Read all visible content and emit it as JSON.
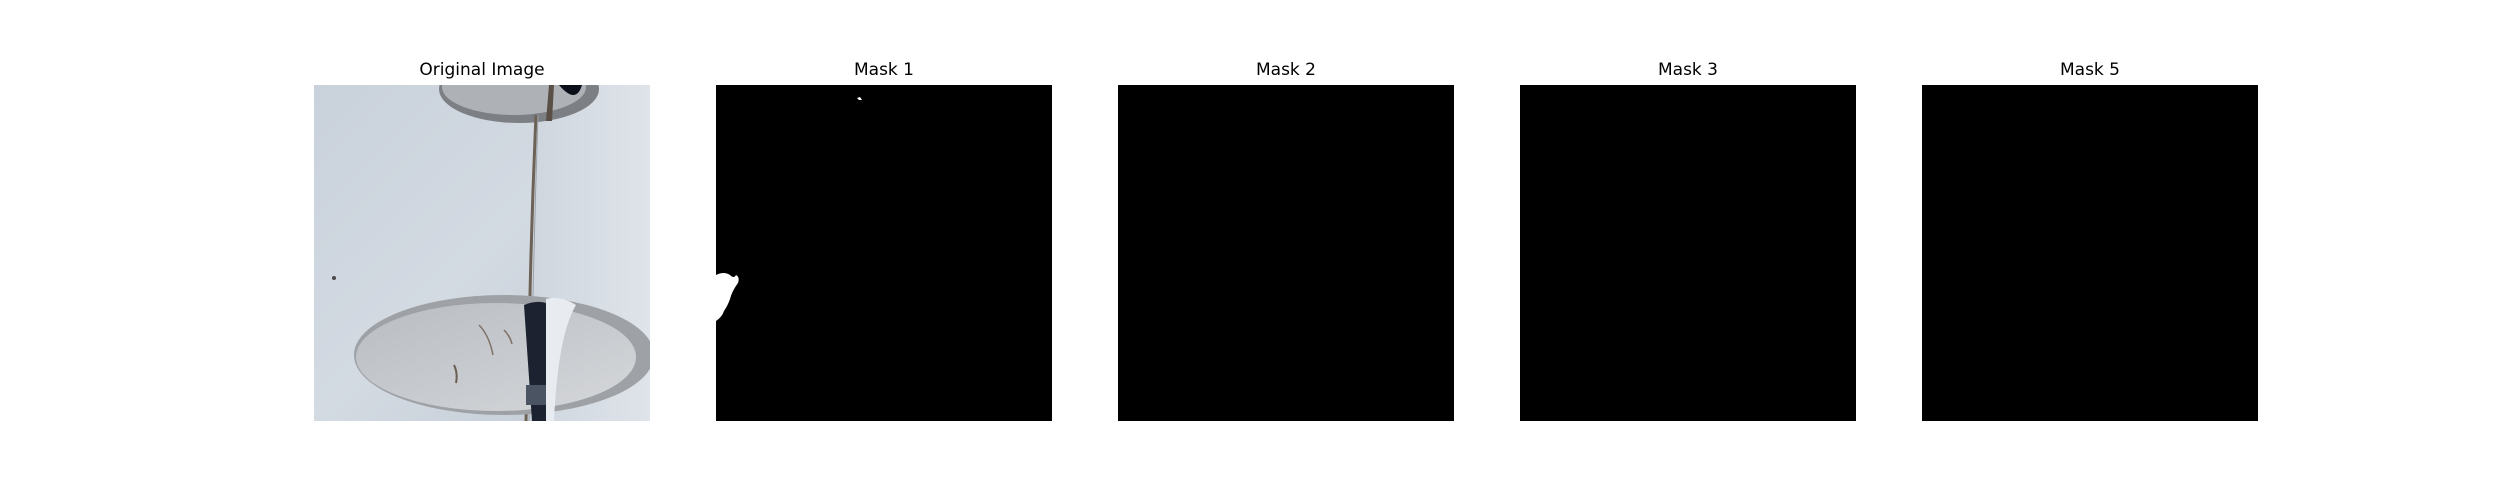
{
  "figure": {
    "panels": [
      {
        "title": "Original Image",
        "kind": "photo",
        "description": "white-grey curved surface with two elliptical openings and a vertical seam"
      },
      {
        "title": "Mask 1",
        "kind": "mask",
        "mask_color": "#000000",
        "foreground_color": "#ffffff",
        "has_foreground": true
      },
      {
        "title": "Mask 2",
        "kind": "mask",
        "mask_color": "#000000",
        "has_foreground": false
      },
      {
        "title": "Mask 3",
        "kind": "mask",
        "mask_color": "#000000",
        "has_foreground": false
      },
      {
        "title": "Mask 5",
        "kind": "mask",
        "mask_color": "#000000",
        "has_foreground": false
      }
    ]
  }
}
